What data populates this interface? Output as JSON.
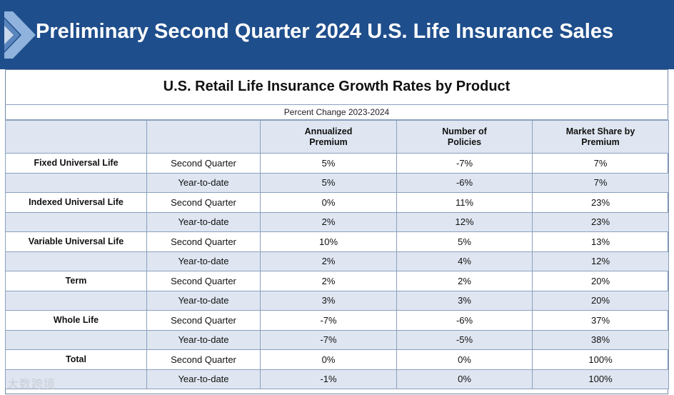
{
  "header": {
    "title": "Preliminary Second Quarter 2024 U.S. Life Insurance Sales"
  },
  "table": {
    "title": "U.S. Retail Life Insurance Growth Rates by Product",
    "subtitle": "Percent Change 2023-2024",
    "columns": [
      "Annualized Premium",
      "Number of Policies",
      "Market Share by Premium"
    ],
    "rows": [
      {
        "product": "Fixed Universal Life",
        "period": "Second Quarter",
        "premium": "5%",
        "policies": "-7%",
        "share": "7%"
      },
      {
        "product": "",
        "period": "Year-to-date",
        "premium": "5%",
        "policies": "-6%",
        "share": "7%"
      },
      {
        "product": "Indexed Universal Life",
        "period": "Second Quarter",
        "premium": "0%",
        "policies": "11%",
        "share": "23%"
      },
      {
        "product": "",
        "period": "Year-to-date",
        "premium": "2%",
        "policies": "12%",
        "share": "23%"
      },
      {
        "product": "Variable Universal Life",
        "period": "Second Quarter",
        "premium": "10%",
        "policies": "5%",
        "share": "13%"
      },
      {
        "product": "",
        "period": "Year-to-date",
        "premium": "2%",
        "policies": "4%",
        "share": "12%"
      },
      {
        "product": "Term",
        "period": "Second Quarter",
        "premium": "2%",
        "policies": "2%",
        "share": "20%"
      },
      {
        "product": "",
        "period": "Year-to-date",
        "premium": "3%",
        "policies": "3%",
        "share": "20%"
      },
      {
        "product": "Whole Life",
        "period": "Second Quarter",
        "premium": "-7%",
        "policies": "-6%",
        "share": "37%"
      },
      {
        "product": "",
        "period": "Year-to-date",
        "premium": "-7%",
        "policies": "-5%",
        "share": "38%"
      },
      {
        "product": "Total",
        "period": "Second Quarter",
        "premium": "0%",
        "policies": "0%",
        "share": "100%"
      },
      {
        "product": "",
        "period": "Year-to-date",
        "premium": "-1%",
        "policies": "0%",
        "share": "100%"
      }
    ]
  },
  "watermark": "大数跨境",
  "colors": {
    "banner": "#1f4e8c",
    "header_fill": "#dfe6f1",
    "grid_line": "#8aa0bd"
  }
}
